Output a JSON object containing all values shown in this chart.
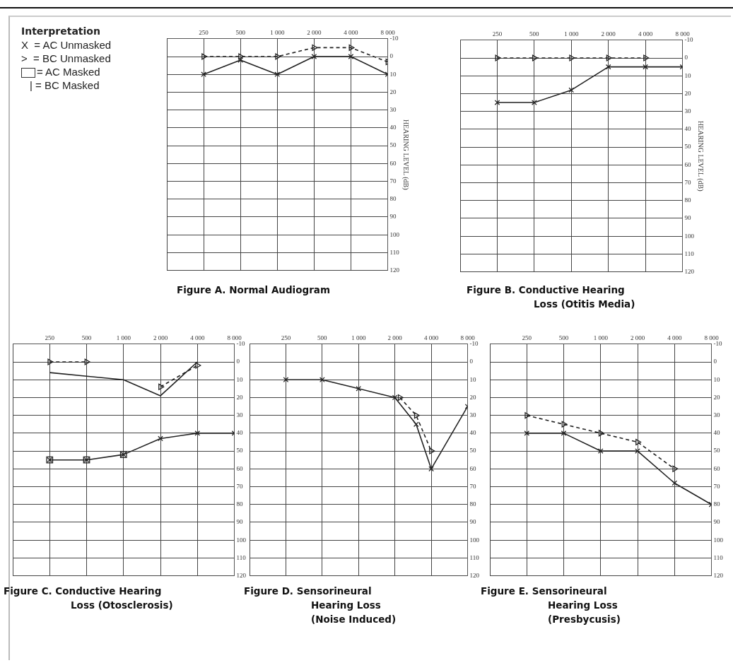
{
  "chart_data": [
    {
      "type": "line",
      "title": "Figure A. Normal Audiogram",
      "ylabel": "HEARING LEVEL (dB)",
      "log": "x",
      "grid": true,
      "annotations": [
        "Interpretation",
        "X  = AC Unmasked",
        ">  = BC Unmasked",
        "= AC Masked",
        "| = BC Masked"
      ],
      "xlim": [
        125,
        8000
      ],
      "xticks": [
        {
          "value": 125,
          "label": null
        },
        {
          "value": 250,
          "label": "250"
        },
        {
          "value": 500,
          "label": "500"
        },
        {
          "value": 1000,
          "label": "1 000"
        },
        {
          "value": 2000,
          "label": "2 000"
        },
        {
          "value": 4000,
          "label": "4 000"
        },
        {
          "value": 8000,
          "label": "8 000"
        }
      ],
      "ylim": [
        120,
        -10
      ],
      "yticks": [
        -10,
        0,
        10,
        20,
        30,
        40,
        50,
        60,
        70,
        80,
        90,
        100,
        110,
        120
      ],
      "series": [
        {
          "type": "line",
          "color": "#222222",
          "marker": "cross",
          "line_style": "solid",
          "x": [
            250,
            500,
            1000,
            2000,
            4000,
            8000
          ],
          "values": [
            10,
            2,
            10,
            0,
            0,
            10
          ]
        },
        {
          "type": "line",
          "color": "#222222",
          "marker": "triangle",
          "line_style": "dashed",
          "x": [
            250,
            500,
            1000,
            2000,
            4000,
            8000
          ],
          "values": [
            0,
            0,
            0,
            -5,
            -5,
            3
          ]
        }
      ]
    },
    {
      "type": "line",
      "title": "Figure B. Conductive Hearing\nLoss (Otitis Media)",
      "ylabel": "HEARING LEVEL (dB)",
      "log": "x",
      "grid": true,
      "xlim": [
        125,
        8000
      ],
      "xticks": [
        {
          "value": 125,
          "label": null
        },
        {
          "value": 250,
          "label": "250"
        },
        {
          "value": 500,
          "label": "500"
        },
        {
          "value": 1000,
          "label": "1 000"
        },
        {
          "value": 2000,
          "label": "2 000"
        },
        {
          "value": 4000,
          "label": "4 000"
        },
        {
          "value": 8000,
          "label": "8 000"
        }
      ],
      "ylim": [
        120,
        -10
      ],
      "yticks": [
        -10,
        0,
        10,
        20,
        30,
        40,
        50,
        60,
        70,
        80,
        90,
        100,
        110,
        120
      ],
      "series": [
        {
          "type": "line",
          "color": "#222222",
          "marker": "cross",
          "line_style": "solid",
          "x": [
            250,
            500,
            1000,
            2000,
            4000,
            8000
          ],
          "values": [
            25,
            25,
            18,
            5,
            5,
            5
          ]
        },
        {
          "type": "line",
          "color": "#222222",
          "marker": "triangle",
          "line_style": "dashed",
          "x": [
            250,
            500,
            1000,
            2000,
            4000
          ],
          "values": [
            0,
            0,
            0,
            0,
            0
          ]
        }
      ]
    },
    {
      "type": "line",
      "title": "Figure C. Conductive Hearing\nLoss (Otosclerosis)",
      "log": "x",
      "grid": true,
      "xlim": [
        125,
        8000
      ],
      "xticks": [
        {
          "value": 125,
          "label": null
        },
        {
          "value": 250,
          "label": "250"
        },
        {
          "value": 500,
          "label": "500"
        },
        {
          "value": 1000,
          "label": "1 000"
        },
        {
          "value": 2000,
          "label": "2 000"
        },
        {
          "value": 4000,
          "label": "4 000"
        },
        {
          "value": 8000,
          "label": "8 000"
        }
      ],
      "ylim": [
        120,
        -10
      ],
      "yticks": [
        -10,
        0,
        10,
        20,
        30,
        40,
        50,
        60,
        70,
        80,
        90,
        100,
        110,
        120
      ],
      "series": [
        {
          "type": "line",
          "color": "#222222",
          "marker": "cross",
          "line_style": "solid",
          "x": [
            250,
            500,
            1000,
            2000,
            4000,
            8000
          ],
          "values": [
            55,
            55,
            52,
            43,
            40,
            40
          ]
        },
        {
          "type": "scatter",
          "color": "#222222",
          "marker": "square",
          "x": [
            250,
            500,
            1000
          ],
          "values": [
            55,
            55,
            52
          ]
        },
        {
          "type": "line",
          "color": "#222222",
          "marker": "none",
          "line_style": "solid",
          "x": [
            250,
            500,
            1000,
            2000,
            4000
          ],
          "values": [
            6,
            8,
            10,
            19,
            0
          ]
        },
        {
          "type": "line",
          "color": "#222222",
          "marker": "triangle",
          "line_style": "dashed",
          "x": [
            250,
            500,
            1000,
            2000,
            4000
          ],
          "values": [
            0,
            0,
            null,
            14,
            2
          ]
        }
      ]
    },
    {
      "type": "line",
      "title": "Figure D. Sensorineural\nHearing Loss\n(Noise Induced)",
      "log": "x",
      "grid": true,
      "xlim": [
        125,
        8000
      ],
      "xticks": [
        {
          "value": 125,
          "label": null
        },
        {
          "value": 250,
          "label": "250"
        },
        {
          "value": 500,
          "label": "500"
        },
        {
          "value": 1000,
          "label": "1 000"
        },
        {
          "value": 2000,
          "label": "2 000"
        },
        {
          "value": 4000,
          "label": "4 000"
        },
        {
          "value": 8000,
          "label": "8 000"
        }
      ],
      "ylim": [
        120,
        -10
      ],
      "yticks": [
        -10,
        0,
        10,
        20,
        30,
        40,
        50,
        60,
        70,
        80,
        90,
        100,
        110,
        120
      ],
      "series": [
        {
          "type": "line",
          "color": "#222222",
          "marker": "cross",
          "line_style": "solid",
          "x": [
            250,
            500,
            1000,
            2000,
            3000,
            4000,
            8000
          ],
          "values": [
            10,
            10,
            15,
            20,
            35,
            60,
            25
          ]
        },
        {
          "type": "line",
          "color": "#222222",
          "marker": "triangle",
          "line_style": "dashed",
          "x": [
            2200,
            3000,
            4000
          ],
          "values": [
            20,
            30,
            50
          ]
        }
      ]
    },
    {
      "type": "line",
      "title": "Figure E. Sensorineural\nHearing Loss\n(Presbycusis)",
      "log": "x",
      "grid": true,
      "xlim": [
        125,
        8000
      ],
      "xticks": [
        {
          "value": 125,
          "label": null
        },
        {
          "value": 250,
          "label": "250"
        },
        {
          "value": 500,
          "label": "500"
        },
        {
          "value": 1000,
          "label": "1 000"
        },
        {
          "value": 2000,
          "label": "2 000"
        },
        {
          "value": 4000,
          "label": "4 000"
        },
        {
          "value": 8000,
          "label": "8 000"
        }
      ],
      "ylim": [
        120,
        -10
      ],
      "yticks": [
        -10,
        0,
        10,
        20,
        30,
        40,
        50,
        60,
        70,
        80,
        90,
        100,
        110,
        120
      ],
      "series": [
        {
          "type": "line",
          "color": "#222222",
          "marker": "cross",
          "line_style": "solid",
          "x": [
            250,
            500,
            1000,
            2000,
            4000,
            8000
          ],
          "values": [
            40,
            40,
            50,
            50,
            68,
            80
          ]
        },
        {
          "type": "line",
          "color": "#222222",
          "marker": "triangle",
          "line_style": "dashed",
          "x": [
            250,
            500,
            1000,
            2000,
            4000
          ],
          "values": [
            30,
            35,
            40,
            45,
            60
          ]
        }
      ]
    }
  ]
}
